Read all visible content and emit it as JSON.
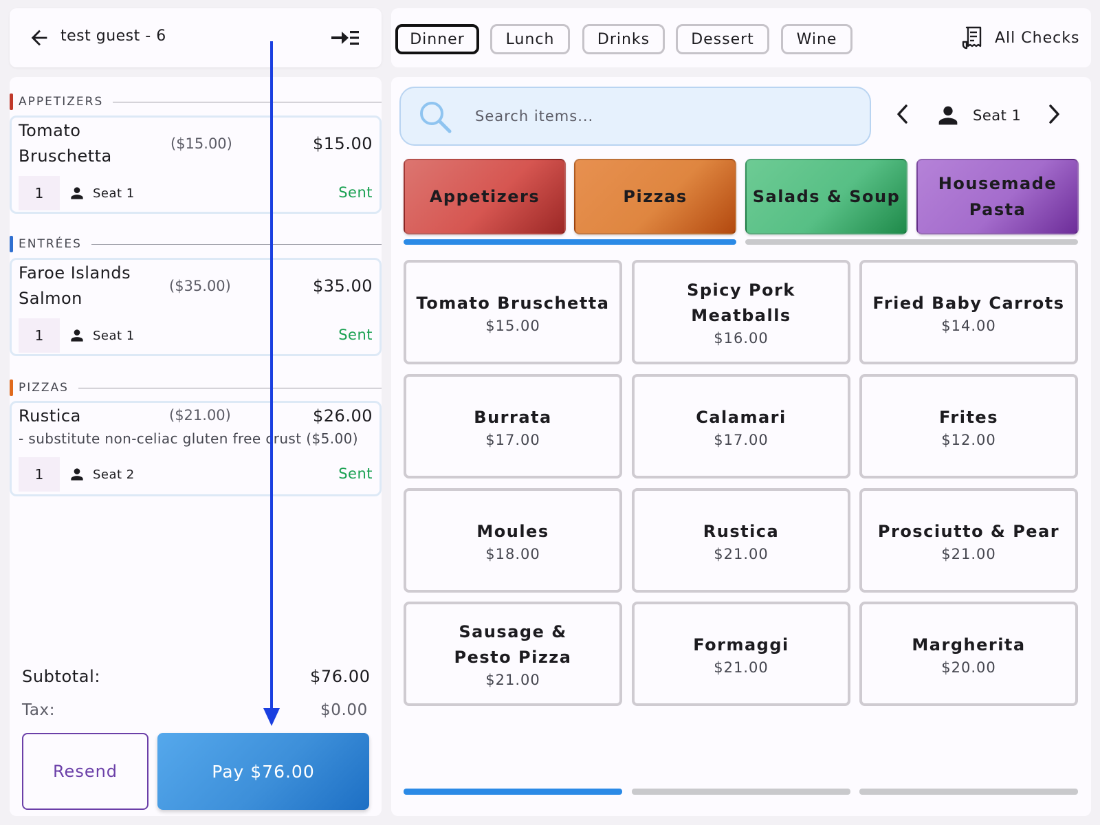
{
  "header": {
    "guest_title": "test guest - 6"
  },
  "order": {
    "sections": [
      {
        "label": "APPETIZERS",
        "color": "#c0392b",
        "item": {
          "name": "Tomato Bruschetta",
          "unit_price": "($15.00)",
          "total": "$15.00",
          "qty": "1",
          "seat": "Seat 1",
          "status": "Sent"
        }
      },
      {
        "label": "ENTRÉES",
        "color": "#2f6fd0",
        "item": {
          "name": "Faroe Islands Salmon",
          "unit_price": "($35.00)",
          "total": "$35.00",
          "qty": "1",
          "seat": "Seat 1",
          "status": "Sent"
        }
      },
      {
        "label": "PIZZAS",
        "color": "#e06a1d",
        "item": {
          "name": "Rustica",
          "unit_price": "($21.00)",
          "total": "$26.00",
          "modifier": "- substitute non-celiac gluten free crust ($5.00)",
          "qty": "1",
          "seat": "Seat 2",
          "status": "Sent"
        }
      }
    ],
    "subtotal_label": "Subtotal:",
    "subtotal_value": "$76.00",
    "tax_label": "Tax:",
    "tax_value": "$0.00",
    "resend_label": "Resend",
    "pay_label": "Pay $76.00",
    "status_color": "#1aa152"
  },
  "menus": {
    "tabs": [
      "Dinner",
      "Lunch",
      "Drinks",
      "Dessert",
      "Wine"
    ],
    "active_tab": "Dinner",
    "all_checks_label": "All Checks"
  },
  "search": {
    "placeholder": "Search items..."
  },
  "seat_selector": {
    "label": "Seat 1"
  },
  "categories": [
    {
      "label": "Appetizers",
      "color": "#d9534f"
    },
    {
      "label": "Pizzas",
      "color": "#e08a3e"
    },
    {
      "label": "Salads & Soup",
      "color": "#4caf75"
    },
    {
      "label": "Housemade Pasta",
      "color": "#a066c4"
    }
  ],
  "items": [
    {
      "name": "Tomato Bruschetta",
      "price": "$15.00"
    },
    {
      "name": "Spicy Pork Meatballs",
      "price": "$16.00"
    },
    {
      "name": "Fried Baby Carrots",
      "price": "$14.00"
    },
    {
      "name": "Burrata",
      "price": "$17.00"
    },
    {
      "name": "Calamari",
      "price": "$17.00"
    },
    {
      "name": "Frites",
      "price": "$12.00"
    },
    {
      "name": "Moules",
      "price": "$18.00"
    },
    {
      "name": "Rustica",
      "price": "$21.00"
    },
    {
      "name": "Prosciutto & Pear",
      "price": "$21.00"
    },
    {
      "name": "Sausage & Pesto Pizza",
      "price": "$21.00"
    },
    {
      "name": "Formaggi",
      "price": "$21.00"
    },
    {
      "name": "Margherita",
      "price": "$20.00"
    }
  ],
  "pagination": {
    "active_page": 1,
    "page_count": 3
  },
  "colors": {
    "accent_blue": "#2b8ae6",
    "arrow_blue": "#1a3fe0",
    "inactive_indicator": "#c9c9cc"
  }
}
